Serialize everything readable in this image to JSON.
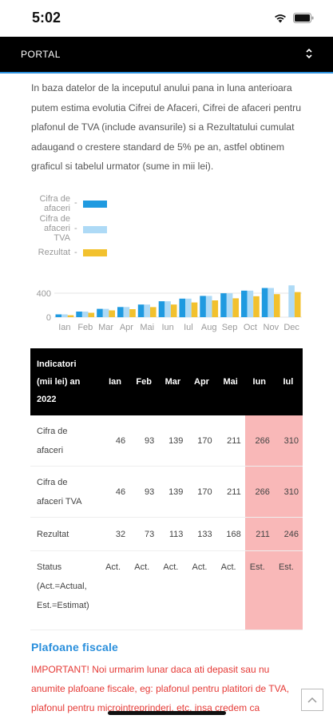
{
  "status_bar": {
    "time": "5:02"
  },
  "navbar": {
    "title": "PORTAL"
  },
  "intro": "In baza datelor de la inceputul anului pana in luna anterioara putem estima evolutia Cifrei de Afaceri, Cifrei de afaceri pentru plafonul de TVA (include avansurile) si a Rezultatului cumulat adaugand o crestere standard de 5% pe an, astfel obtinem graficul si tabelul urmator (sume in mii lei).",
  "chart_data": {
    "type": "bar",
    "categories": [
      "Ian",
      "Feb",
      "Mar",
      "Apr",
      "Mai",
      "Iun",
      "Iul",
      "Aug",
      "Sep",
      "Oct",
      "Nov",
      "Dec"
    ],
    "series": [
      {
        "name": "Cifra de afaceri",
        "color": "#1f9ae0",
        "values": [
          46,
          93,
          139,
          170,
          211,
          266,
          310,
          355,
          399,
          443,
          487,
          0
        ]
      },
      {
        "name": "Cifra de afaceri TVA",
        "color": "#aedaf6",
        "values": [
          46,
          93,
          139,
          170,
          211,
          266,
          310,
          355,
          399,
          443,
          487,
          531
        ]
      },
      {
        "name": "Rezultat",
        "color": "#f2c12e",
        "values": [
          32,
          73,
          113,
          133,
          168,
          211,
          246,
          280,
          315,
          349,
          384,
          418
        ]
      }
    ],
    "y_ticks": [
      "400",
      "0"
    ],
    "ylim": [
      0,
      560
    ],
    "legend_placement": "top-left"
  },
  "legend": {
    "items": [
      {
        "label_lines": [
          "Cifra de",
          "afaceri"
        ],
        "color": "#1f9ae0"
      },
      {
        "label_lines": [
          "Cifra de",
          "afaceri",
          "TVA"
        ],
        "color": "#aedaf6"
      },
      {
        "label_lines": [
          "Rezultat"
        ],
        "color": "#f2c12e"
      }
    ]
  },
  "table": {
    "header_first_lines": [
      "Indicatori",
      "(mii lei) an",
      "2022"
    ],
    "months": [
      "Ian",
      "Feb",
      "Mar",
      "Apr",
      "Mai",
      "Iun",
      "Iul"
    ],
    "rows": [
      {
        "label_lines": [
          "Cifra de",
          "afaceri"
        ],
        "values": [
          "46",
          "93",
          "139",
          "170",
          "211",
          "266",
          "310"
        ]
      },
      {
        "label_lines": [
          "Cifra de",
          "afaceri TVA"
        ],
        "values": [
          "46",
          "93",
          "139",
          "170",
          "211",
          "266",
          "310"
        ]
      },
      {
        "label_lines": [
          "Rezultat"
        ],
        "values": [
          "32",
          "73",
          "113",
          "133",
          "168",
          "211",
          "246"
        ]
      },
      {
        "label_lines": [
          "Status",
          "(Act.=Actual,",
          "Est.=Estimat)"
        ],
        "values": [
          "Act.",
          "Act.",
          "Act.",
          "Act.",
          "Act.",
          "Est.",
          "Est."
        ]
      }
    ],
    "estimated_columns": [
      5,
      6
    ],
    "estimated_color": "#f9b8b8"
  },
  "section": {
    "heading": "Plafoane fiscale",
    "important_label": "IMPORTANT!",
    "important_text": " Noi urmarim lunar daca ati depasit sau nu anumite plafoane fiscale, eg: plafonul pentru platitori de TVA, plafonul pentru microintreprinderi, etc, insa credem ca"
  },
  "colors": {
    "accent": "#2a8fdc",
    "important": "#e53935"
  }
}
